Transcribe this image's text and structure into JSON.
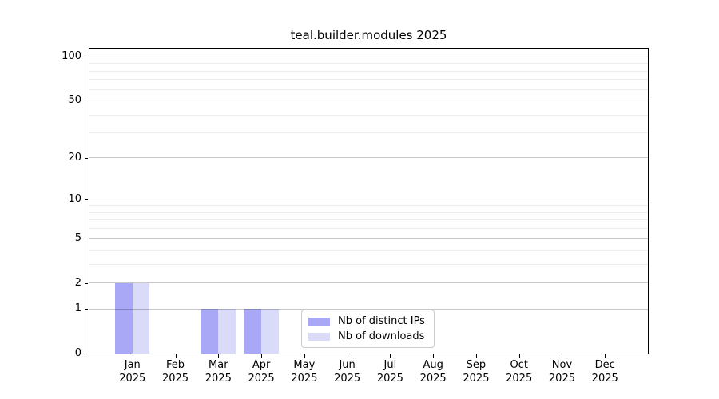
{
  "chart_data": {
    "type": "bar",
    "title": "teal.builder.modules 2025",
    "x_axis": {
      "months": [
        "Jan",
        "Feb",
        "Mar",
        "Apr",
        "May",
        "Jun",
        "Jul",
        "Aug",
        "Sep",
        "Oct",
        "Nov",
        "Dec"
      ],
      "year": "2025"
    },
    "y_axis": {
      "scale": "log1p",
      "major_ticks": [
        0,
        1,
        2,
        5,
        10,
        20,
        50,
        100
      ],
      "minor_ticks": [
        3,
        4,
        6,
        7,
        8,
        9,
        30,
        40,
        60,
        70,
        80,
        90
      ],
      "min": 0,
      "max": 114,
      "grid": true
    },
    "series": [
      {
        "name": "Nb of distinct IPs",
        "color": "#a8a8f7",
        "values": [
          2,
          0,
          1,
          1,
          0,
          0,
          0,
          0,
          0,
          0,
          0,
          0
        ]
      },
      {
        "name": "Nb of downloads",
        "color": "#dadaf9",
        "values": [
          2,
          0,
          1,
          1,
          0,
          0,
          0,
          0,
          0,
          0,
          0,
          0
        ]
      }
    ],
    "legend": {
      "location": "lower center",
      "entries": [
        "Nb of distinct IPs",
        "Nb of downloads"
      ]
    }
  }
}
